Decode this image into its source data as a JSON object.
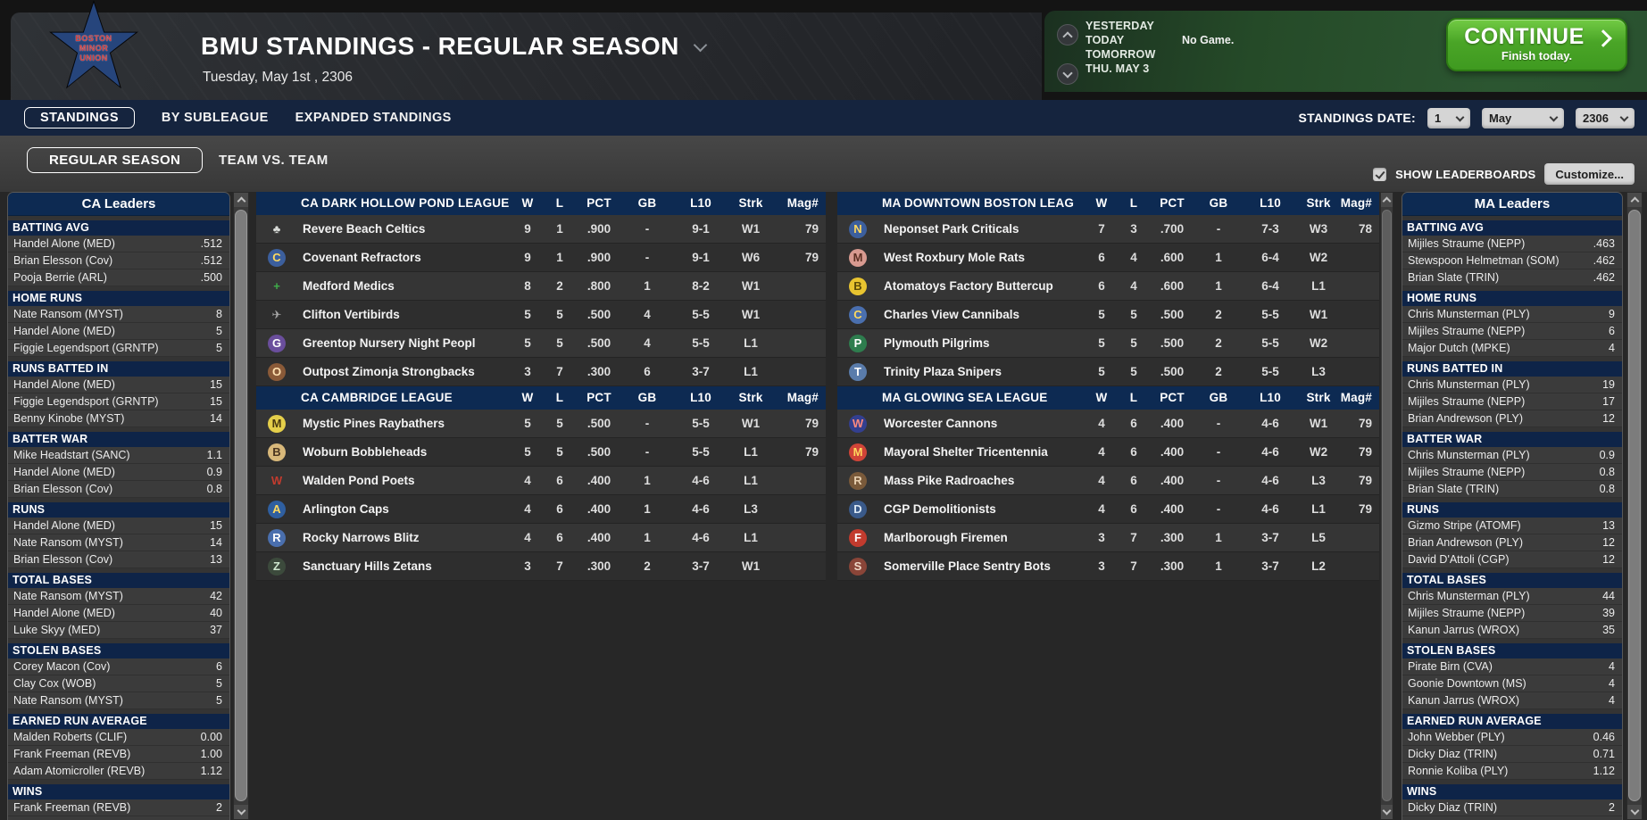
{
  "header": {
    "title": "BMU STANDINGS - REGULAR SEASON",
    "date": "Tuesday, May 1st , 2306",
    "logo_lines": [
      "BOSTON",
      "MINOR",
      "UNION"
    ]
  },
  "schedule": {
    "rows": [
      {
        "label": "YESTERDAY",
        "detail": ""
      },
      {
        "label": "TODAY",
        "detail": "No Game."
      },
      {
        "label": "TOMORROW",
        "detail": ""
      },
      {
        "label": "THU. MAY 3",
        "detail": ""
      }
    ],
    "continue_label": "CONTINUE",
    "continue_sub": "Finish today."
  },
  "nav": {
    "tabs": [
      {
        "label": "STANDINGS",
        "selected": true
      },
      {
        "label": "BY SUBLEAGUE",
        "selected": false
      },
      {
        "label": "EXPANDED STANDINGS",
        "selected": false
      }
    ],
    "date_label": "STANDINGS DATE:",
    "date_values": [
      "1",
      "May",
      "2306"
    ],
    "subtabs": [
      {
        "label": "REGULAR SEASON",
        "selected": true
      },
      {
        "label": "TEAM VS. TEAM",
        "selected": false
      }
    ],
    "show_leaderboards": "SHOW LEADERBOARDS",
    "show_leaderboards_checked": true,
    "customize": "Customize..."
  },
  "colors": {
    "accent_navy": "#0d2a52",
    "continue_green": "#4aa527",
    "panel_gray": "#3b3b3b"
  },
  "standings": {
    "columns": [
      "W",
      "L",
      "PCT",
      "GB",
      "L10",
      "Strk",
      "Mag#"
    ],
    "left_tables": [
      {
        "league": "CA DARK HOLLOW POND LEAGUE",
        "teams": [
          {
            "name": "Revere Beach Celtics",
            "icon": {
              "glyph": "♣",
              "fg": "#d9dcd9",
              "bg": ""
            },
            "w": "9",
            "l": "1",
            "pct": ".900",
            "gb": "-",
            "l10": "9-1",
            "strk": "W1",
            "mag": "79"
          },
          {
            "name": "Covenant Refractors",
            "icon": {
              "glyph": "C",
              "fg": "#ffd95e",
              "bg": "#3c5f9d"
            },
            "w": "9",
            "l": "1",
            "pct": ".900",
            "gb": "-",
            "l10": "9-1",
            "strk": "W6",
            "mag": "79"
          },
          {
            "name": "Medford Medics",
            "icon": {
              "glyph": "+",
              "fg": "#3fae4a",
              "bg": ""
            },
            "w": "8",
            "l": "2",
            "pct": ".800",
            "gb": "1",
            "l10": "8-2",
            "strk": "W1",
            "mag": ""
          },
          {
            "name": "Clifton Vertibirds",
            "icon": {
              "glyph": "✈",
              "fg": "#a8a8a8",
              "bg": ""
            },
            "w": "5",
            "l": "5",
            "pct": ".500",
            "gb": "4",
            "l10": "5-5",
            "strk": "W1",
            "mag": ""
          },
          {
            "name": "Greentop Nursery Night Peopl",
            "icon": {
              "glyph": "G",
              "fg": "#ffffff",
              "bg": "#6a4e9c"
            },
            "w": "5",
            "l": "5",
            "pct": ".500",
            "gb": "4",
            "l10": "5-5",
            "strk": "L1",
            "mag": ""
          },
          {
            "name": "Outpost Zimonja Strongbacks",
            "icon": {
              "glyph": "O",
              "fg": "#ffe0b0",
              "bg": "#8a5a38"
            },
            "w": "3",
            "l": "7",
            "pct": ".300",
            "gb": "6",
            "l10": "3-7",
            "strk": "L1",
            "mag": ""
          }
        ]
      },
      {
        "league": "CA CAMBRIDGE LEAGUE",
        "teams": [
          {
            "name": "Mystic Pines Raybathers",
            "icon": {
              "glyph": "M",
              "fg": "#4a3a10",
              "bg": "#e5cf4a"
            },
            "w": "5",
            "l": "5",
            "pct": ".500",
            "gb": "-",
            "l10": "5-5",
            "strk": "W1",
            "mag": "79"
          },
          {
            "name": "Woburn Bobbleheads",
            "icon": {
              "glyph": "B",
              "fg": "#4a3520",
              "bg": "#d8b87a"
            },
            "w": "5",
            "l": "5",
            "pct": ".500",
            "gb": "-",
            "l10": "5-5",
            "strk": "L1",
            "mag": "79"
          },
          {
            "name": "Walden Pond Poets",
            "icon": {
              "glyph": "W",
              "fg": "#c23b2e",
              "bg": ""
            },
            "w": "4",
            "l": "6",
            "pct": ".400",
            "gb": "1",
            "l10": "4-6",
            "strk": "L1",
            "mag": ""
          },
          {
            "name": "Arlington Caps",
            "icon": {
              "glyph": "A",
              "fg": "#ffd95e",
              "bg": "#2f5fa0"
            },
            "w": "4",
            "l": "6",
            "pct": ".400",
            "gb": "1",
            "l10": "4-6",
            "strk": "L3",
            "mag": ""
          },
          {
            "name": "Rocky Narrows Blitz",
            "icon": {
              "glyph": "R",
              "fg": "#ffffff",
              "bg": "#4a6fae"
            },
            "w": "4",
            "l": "6",
            "pct": ".400",
            "gb": "1",
            "l10": "4-6",
            "strk": "L1",
            "mag": ""
          },
          {
            "name": "Sanctuary Hills Zetans",
            "icon": {
              "glyph": "Z",
              "fg": "#cfe8cf",
              "bg": "#3c4a3c"
            },
            "w": "3",
            "l": "7",
            "pct": ".300",
            "gb": "2",
            "l10": "3-7",
            "strk": "W1",
            "mag": ""
          }
        ]
      }
    ],
    "right_tables": [
      {
        "league": "MA DOWNTOWN BOSTON LEAG",
        "teams": [
          {
            "name": "Neponset Park Criticals",
            "icon": {
              "glyph": "N",
              "fg": "#ffd95e",
              "bg": "#3c5f9d"
            },
            "w": "7",
            "l": "3",
            "pct": ".700",
            "gb": "-",
            "l10": "7-3",
            "strk": "W3",
            "mag": "78"
          },
          {
            "name": "West Roxbury Mole Rats",
            "icon": {
              "glyph": "M",
              "fg": "#5a2f22",
              "bg": "#d89a90"
            },
            "w": "6",
            "l": "4",
            "pct": ".600",
            "gb": "1",
            "l10": "6-4",
            "strk": "W2",
            "mag": ""
          },
          {
            "name": "Atomatoys Factory Buttercup",
            "icon": {
              "glyph": "B",
              "fg": "#5a4a08",
              "bg": "#e8c430"
            },
            "w": "6",
            "l": "4",
            "pct": ".600",
            "gb": "1",
            "l10": "6-4",
            "strk": "L1",
            "mag": ""
          },
          {
            "name": "Charles View Cannibals",
            "icon": {
              "glyph": "C",
              "fg": "#ffd95e",
              "bg": "#4a6fae"
            },
            "w": "5",
            "l": "5",
            "pct": ".500",
            "gb": "2",
            "l10": "5-5",
            "strk": "W1",
            "mag": ""
          },
          {
            "name": "Plymouth Pilgrims",
            "icon": {
              "glyph": "P",
              "fg": "#ffffff",
              "bg": "#2e7d4e"
            },
            "w": "5",
            "l": "5",
            "pct": ".500",
            "gb": "2",
            "l10": "5-5",
            "strk": "W2",
            "mag": ""
          },
          {
            "name": "Trinity Plaza Snipers",
            "icon": {
              "glyph": "T",
              "fg": "#ffffff",
              "bg": "#5a7cab"
            },
            "w": "5",
            "l": "5",
            "pct": ".500",
            "gb": "2",
            "l10": "5-5",
            "strk": "L3",
            "mag": ""
          }
        ]
      },
      {
        "league": "MA GLOWING SEA LEAGUE",
        "teams": [
          {
            "name": "Worcester Cannons",
            "icon": {
              "glyph": "W",
              "fg": "#ff8a7e",
              "bg": "#333f8f"
            },
            "w": "4",
            "l": "6",
            "pct": ".400",
            "gb": "-",
            "l10": "4-6",
            "strk": "W1",
            "mag": "79"
          },
          {
            "name": "Mayoral Shelter Tricentennia",
            "icon": {
              "glyph": "M",
              "fg": "#ffd95e",
              "bg": "#d04438"
            },
            "w": "4",
            "l": "6",
            "pct": ".400",
            "gb": "-",
            "l10": "4-6",
            "strk": "W2",
            "mag": "79"
          },
          {
            "name": "Mass Pike Radroaches",
            "icon": {
              "glyph": "R",
              "fg": "#e8d0b0",
              "bg": "#7a5a3a"
            },
            "w": "4",
            "l": "6",
            "pct": ".400",
            "gb": "-",
            "l10": "4-6",
            "strk": "L3",
            "mag": "79"
          },
          {
            "name": "CGP Demolitionists",
            "icon": {
              "glyph": "D",
              "fg": "#dce8f5",
              "bg": "#3a5a8a"
            },
            "w": "4",
            "l": "6",
            "pct": ".400",
            "gb": "-",
            "l10": "4-6",
            "strk": "L1",
            "mag": "79"
          },
          {
            "name": "Marlborough Firemen",
            "icon": {
              "glyph": "F",
              "fg": "#ffffff",
              "bg": "#c23b2e"
            },
            "w": "3",
            "l": "7",
            "pct": ".300",
            "gb": "1",
            "l10": "3-7",
            "strk": "L5",
            "mag": ""
          },
          {
            "name": "Somerville Place Sentry Bots",
            "icon": {
              "glyph": "S",
              "fg": "#f0d8c8",
              "bg": "#8a4538"
            },
            "w": "3",
            "l": "7",
            "pct": ".300",
            "gb": "1",
            "l10": "3-7",
            "strk": "L2",
            "mag": ""
          }
        ]
      }
    ]
  },
  "leaders_left": {
    "title": "CA Leaders",
    "sections": [
      {
        "title": "BATTING AVG",
        "rows": [
          [
            "Handel Alone (MED)",
            ".512"
          ],
          [
            "Brian Elesson (Cov)",
            ".512"
          ],
          [
            "Pooja Berrie (ARL)",
            ".500"
          ]
        ]
      },
      {
        "title": "HOME RUNS",
        "rows": [
          [
            "Nate Ransom (MYST)",
            "8"
          ],
          [
            "Handel Alone (MED)",
            "5"
          ],
          [
            "Figgie Legendsport (GRNTP)",
            "5"
          ]
        ]
      },
      {
        "title": "RUNS BATTED IN",
        "rows": [
          [
            "Handel Alone (MED)",
            "15"
          ],
          [
            "Figgie Legendsport (GRNTP)",
            "15"
          ],
          [
            "Benny Kinobe (MYST)",
            "14"
          ]
        ]
      },
      {
        "title": "BATTER WAR",
        "rows": [
          [
            "Mike Headstart (SANC)",
            "1.1"
          ],
          [
            "Handel Alone (MED)",
            "0.9"
          ],
          [
            "Brian Elesson (Cov)",
            "0.8"
          ]
        ]
      },
      {
        "title": "RUNS",
        "rows": [
          [
            "Handel Alone (MED)",
            "15"
          ],
          [
            "Nate Ransom (MYST)",
            "14"
          ],
          [
            "Brian Elesson (Cov)",
            "13"
          ]
        ]
      },
      {
        "title": "TOTAL BASES",
        "rows": [
          [
            "Nate Ransom (MYST)",
            "42"
          ],
          [
            "Handel Alone (MED)",
            "40"
          ],
          [
            "Luke Skyy (MED)",
            "37"
          ]
        ]
      },
      {
        "title": "STOLEN BASES",
        "rows": [
          [
            "Corey Macon (Cov)",
            "6"
          ],
          [
            "Clay Cox (WOB)",
            "5"
          ],
          [
            "Nate Ransom (MYST)",
            "5"
          ]
        ]
      },
      {
        "title": "EARNED RUN AVERAGE",
        "rows": [
          [
            "Malden Roberts (CLIF)",
            "0.00"
          ],
          [
            "Frank Freeman (REVB)",
            "1.00"
          ],
          [
            "Adam Atomicroller (REVB)",
            "1.12"
          ]
        ]
      },
      {
        "title": "WINS",
        "rows": [
          [
            "Frank Freeman (REVB)",
            "2"
          ],
          [
            "",
            ""
          ]
        ]
      }
    ]
  },
  "leaders_right": {
    "title": "MA Leaders",
    "sections": [
      {
        "title": "BATTING AVG",
        "rows": [
          [
            "Mijiles Straume (NEPP)",
            ".463"
          ],
          [
            "Stewspoon Helmetman (SOM)",
            ".462"
          ],
          [
            "Brian Slate (TRIN)",
            ".462"
          ]
        ]
      },
      {
        "title": "HOME RUNS",
        "rows": [
          [
            "Chris Munsterman (PLY)",
            "9"
          ],
          [
            "Mijiles Straume (NEPP)",
            "6"
          ],
          [
            "Major Dutch (MPKE)",
            "4"
          ]
        ]
      },
      {
        "title": "RUNS BATTED IN",
        "rows": [
          [
            "Chris Munsterman (PLY)",
            "19"
          ],
          [
            "Mijiles Straume (NEPP)",
            "17"
          ],
          [
            "Brian Andrewson (PLY)",
            "12"
          ]
        ]
      },
      {
        "title": "BATTER WAR",
        "rows": [
          [
            "Chris Munsterman (PLY)",
            "0.9"
          ],
          [
            "Mijiles Straume (NEPP)",
            "0.8"
          ],
          [
            "Brian Slate (TRIN)",
            "0.8"
          ]
        ]
      },
      {
        "title": "RUNS",
        "rows": [
          [
            "Gizmo Stripe (ATOMF)",
            "13"
          ],
          [
            "Brian Andrewson (PLY)",
            "12"
          ],
          [
            "David D'Attoli (CGP)",
            "12"
          ]
        ]
      },
      {
        "title": "TOTAL BASES",
        "rows": [
          [
            "Chris Munsterman (PLY)",
            "44"
          ],
          [
            "Mijiles Straume (NEPP)",
            "39"
          ],
          [
            "Kanun Jarrus (WROX)",
            "35"
          ]
        ]
      },
      {
        "title": "STOLEN BASES",
        "rows": [
          [
            "Pirate Birn (CVA)",
            "4"
          ],
          [
            "Goonie Downtown (MS)",
            "4"
          ],
          [
            "Kanun Jarrus (WROX)",
            "4"
          ]
        ]
      },
      {
        "title": "EARNED RUN AVERAGE",
        "rows": [
          [
            "John Webber (PLY)",
            "0.46"
          ],
          [
            "Dicky Diaz (TRIN)",
            "0.71"
          ],
          [
            "Ronnie Koliba (PLY)",
            "1.12"
          ]
        ]
      },
      {
        "title": "WINS",
        "rows": [
          [
            "Dicky Diaz (TRIN)",
            "2"
          ],
          [
            "",
            ""
          ]
        ]
      }
    ]
  }
}
